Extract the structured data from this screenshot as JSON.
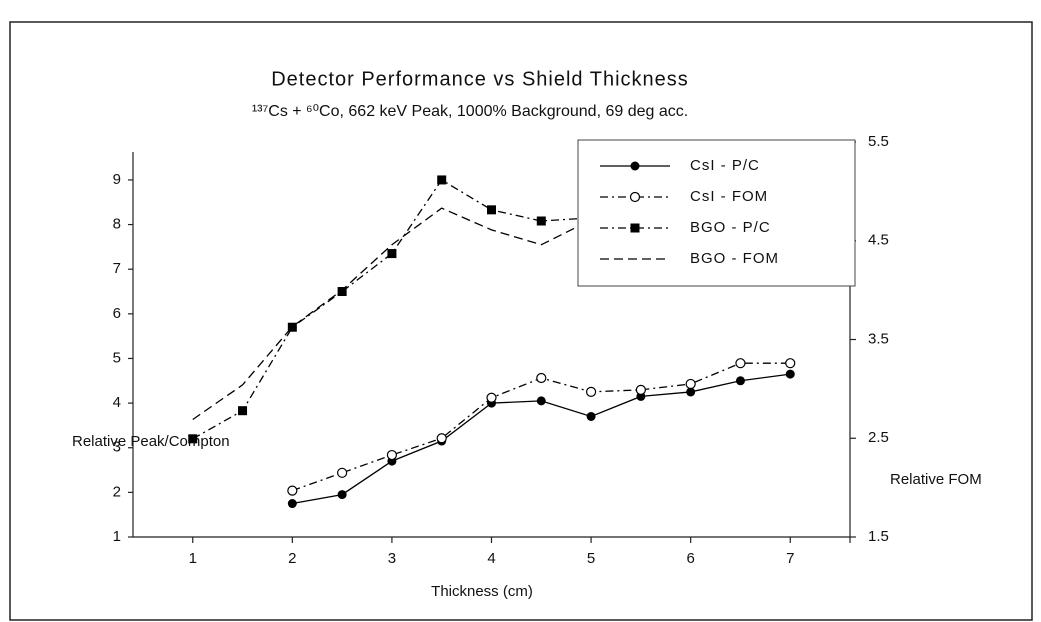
{
  "chart_data": {
    "type": "line",
    "title": "Detector Performance vs Shield Thickness",
    "subtitle": "¹³⁷Cs + ⁶⁰Co, 662 keV Peak, 1000% Background, 69 deg acc.",
    "xlabel": "Thickness (cm)",
    "ylabel": "Relative Peak/Compton",
    "y2label": "Relative FOM",
    "xlim": [
      0.4,
      7.6
    ],
    "xticks": [
      1,
      2,
      3,
      4,
      5,
      6,
      7
    ],
    "ylim": [
      1,
      9.85
    ],
    "yticks": [
      1,
      2,
      3,
      4,
      5,
      6,
      7,
      8,
      9
    ],
    "y2lim": [
      1.5,
      5.5
    ],
    "y2ticks": [
      1.5,
      2.5,
      3.5,
      4.5,
      5.5
    ],
    "grid": false,
    "legend": "upper right",
    "series": [
      {
        "name": "CsI - P/C",
        "color": "#000000",
        "linestyle": "solid",
        "marker": "filled-circle",
        "x": [
          2,
          2.5,
          3,
          3.5,
          4,
          4.5,
          5,
          5.5,
          6,
          6.5,
          7
        ],
        "values": [
          1.75,
          1.95,
          2.7,
          3.15,
          4.0,
          4.05,
          3.7,
          4.15,
          4.25,
          4.5,
          4.65
        ]
      },
      {
        "name": "CsI - FOM",
        "color": "#000000",
        "linestyle": "dash-dot",
        "marker": "open-circle",
        "axis": "y2",
        "x": [
          2,
          2.5,
          3,
          3.5,
          4,
          4.5,
          5,
          5.5,
          6,
          6.5,
          7
        ],
        "values": [
          1.97,
          2.15,
          2.33,
          2.5,
          2.91,
          3.11,
          2.97,
          2.99,
          3.05,
          3.26,
          3.26
        ]
      },
      {
        "name": "BGO - P/C",
        "color": "#000000",
        "linestyle": "dash-dot",
        "marker": "filled-square",
        "x": [
          1,
          1.5,
          2,
          2.5,
          3,
          3.5,
          4,
          4.5,
          5
        ],
        "values": [
          3.2,
          3.83,
          5.7,
          6.5,
          7.35,
          9.0,
          8.33,
          8.08,
          8.15
        ]
      },
      {
        "name": "BGO - FOM",
        "color": "#000000",
        "linestyle": "dashed",
        "marker": "none",
        "axis": "y2",
        "x": [
          1,
          1.5,
          2,
          2.5,
          3,
          3.5,
          4,
          4.5,
          5
        ],
        "values": [
          2.69,
          3.04,
          3.63,
          4.0,
          4.46,
          4.83,
          4.61,
          4.46,
          4.71
        ]
      }
    ]
  }
}
